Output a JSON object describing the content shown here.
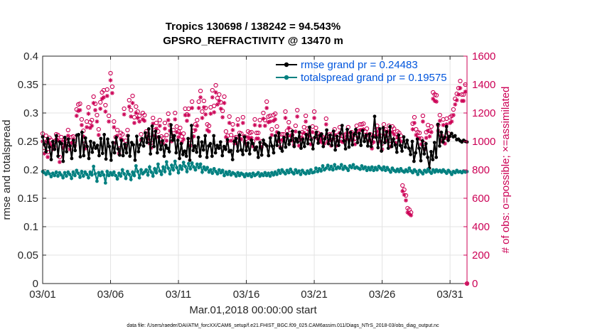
{
  "chart_data": {
    "type": "line",
    "title_line1": "Tropics 130698 / 138242 = 94.543%",
    "title_line2": "GPSRO_REFRACTIVITY @ 13470 m",
    "xlabel": "Mar.01,2018 00:00:00 start",
    "ylabel_left": "rmse and totalspread",
    "ylabel_right": "# of obs: o=possible; ×=assimilated",
    "x_tick_labels": [
      "03/01",
      "03/06",
      "03/11",
      "03/16",
      "03/21",
      "03/26",
      "03/31"
    ],
    "x_tick_days": [
      0,
      5,
      10,
      15,
      20,
      25,
      30
    ],
    "xlim_days": [
      0,
      31.25
    ],
    "ylim_left": [
      0,
      0.4
    ],
    "left_tick_labels": [
      "0",
      "0.05",
      "0.1",
      "0.15",
      "0.2",
      "0.25",
      "0.3",
      "0.35",
      "0.4"
    ],
    "ylim_right": [
      0,
      1600
    ],
    "right_tick_labels": [
      "0",
      "200",
      "400",
      "600",
      "800",
      "1000",
      "1200",
      "1400",
      "1600"
    ],
    "grid": true,
    "legend_placement": "top-right",
    "series": [
      {
        "name": "rmse grand pr = 0.24483",
        "color": "#000000",
        "axis": "left",
        "marker": "dot",
        "values": [
          0.258,
          0.245,
          0.232,
          0.255,
          0.24,
          0.218,
          0.25,
          0.236,
          0.26,
          0.224,
          0.249,
          0.246,
          0.215,
          0.257,
          0.232,
          0.254,
          0.242,
          0.22,
          0.252,
          0.234,
          0.261,
          0.262,
          0.223,
          0.266,
          0.225,
          0.256,
          0.241,
          0.22,
          0.25,
          0.231,
          0.247,
          0.238,
          0.243,
          0.225,
          0.255,
          0.229,
          0.262,
          0.219,
          0.254,
          0.241,
          0.217,
          0.248,
          0.23,
          0.257,
          0.237,
          0.226,
          0.252,
          0.225,
          0.245,
          0.23,
          0.26,
          0.224,
          0.248,
          0.244,
          0.217,
          0.259,
          0.232,
          0.244,
          0.255,
          0.242,
          0.265,
          0.248,
          0.272,
          0.228,
          0.277,
          0.241,
          0.268,
          0.23,
          0.258,
          0.236,
          0.251,
          0.224,
          0.243,
          0.238,
          0.232,
          0.279,
          0.252,
          0.26,
          0.23,
          0.252,
          0.22,
          0.246,
          0.227,
          0.233,
          0.224,
          0.255,
          0.217,
          0.278,
          0.234,
          0.242,
          0.231,
          0.257,
          0.224,
          0.249,
          0.235,
          0.26,
          0.222,
          0.242,
          0.246,
          0.224,
          0.26,
          0.23,
          0.243,
          0.238,
          0.249,
          0.225,
          0.241,
          0.236,
          0.253,
          0.232,
          0.234,
          0.218,
          0.25,
          0.255,
          0.233,
          0.261,
          0.235,
          0.227,
          0.258,
          0.234,
          0.247,
          0.228,
          0.252,
          0.246,
          0.235,
          0.24,
          0.222,
          0.248,
          0.226,
          0.252,
          0.245,
          0.242,
          0.225,
          0.256,
          0.242,
          0.23,
          0.26,
          0.243,
          0.265,
          0.238,
          0.233,
          0.257,
          0.24,
          0.263,
          0.245,
          0.252,
          0.268,
          0.241,
          0.255,
          0.249,
          0.266,
          0.238,
          0.254,
          0.241,
          0.262,
          0.246,
          0.275,
          0.253,
          0.237,
          0.257,
          0.266,
          0.247,
          0.26,
          0.263,
          0.241,
          0.255,
          0.27,
          0.246,
          0.261,
          0.243,
          0.268,
          0.235,
          0.259,
          0.243,
          0.264,
          0.278,
          0.251,
          0.237,
          0.271,
          0.24,
          0.266,
          0.244,
          0.262,
          0.271,
          0.248,
          0.264,
          0.243,
          0.269,
          0.25,
          0.261,
          0.242,
          0.263,
          0.241,
          0.258,
          0.294,
          0.257,
          0.239,
          0.272,
          0.233,
          0.274,
          0.248,
          0.267,
          0.238,
          0.276,
          0.241,
          0.254,
          0.244,
          0.231,
          0.261,
          0.243,
          0.233,
          0.258,
          0.24,
          0.252,
          0.238,
          0.227,
          0.25,
          0.215,
          0.23,
          0.254,
          0.238,
          0.216,
          0.251,
          0.228,
          0.246,
          0.222,
          0.203,
          0.232,
          0.218,
          0.248,
          0.222,
          0.28,
          0.242,
          0.266,
          0.249,
          0.257,
          0.276,
          0.252,
          0.259,
          0.264,
          0.258,
          0.26,
          0.253,
          0.254,
          0.251,
          0.249,
          0.252,
          0.25,
          0.249
        ]
      },
      {
        "name": "totalspread grand pr = 0.19575",
        "color": "#008080",
        "axis": "left",
        "marker": "dot",
        "values": [
          0.197,
          0.195,
          0.192,
          0.197,
          0.193,
          0.188,
          0.194,
          0.19,
          0.196,
          0.189,
          0.195,
          0.191,
          0.186,
          0.195,
          0.189,
          0.196,
          0.192,
          0.185,
          0.196,
          0.19,
          0.199,
          0.194,
          0.187,
          0.197,
          0.189,
          0.196,
          0.192,
          0.186,
          0.196,
          0.191,
          0.206,
          0.193,
          0.18,
          0.195,
          0.19,
          0.196,
          0.191,
          0.177,
          0.197,
          0.19,
          0.195,
          0.191,
          0.196,
          0.19,
          0.184,
          0.194,
          0.189,
          0.2,
          0.193,
          0.185,
          0.197,
          0.192,
          0.183,
          0.196,
          0.19,
          0.207,
          0.197,
          0.186,
          0.2,
          0.193,
          0.196,
          0.2,
          0.191,
          0.205,
          0.196,
          0.189,
          0.202,
          0.195,
          0.21,
          0.198,
          0.192,
          0.205,
          0.197,
          0.214,
          0.203,
          0.193,
          0.208,
          0.2,
          0.215,
          0.204,
          0.195,
          0.207,
          0.201,
          0.213,
          0.206,
          0.197,
          0.211,
          0.202,
          0.212,
          0.205,
          0.2,
          0.21,
          0.204,
          0.21,
          0.196,
          0.205,
          0.2,
          0.204,
          0.196,
          0.2,
          0.194,
          0.202,
          0.197,
          0.193,
          0.2,
          0.195,
          0.199,
          0.19,
          0.196,
          0.192,
          0.197,
          0.191,
          0.195,
          0.193,
          0.189,
          0.195,
          0.19,
          0.194,
          0.192,
          0.188,
          0.193,
          0.19,
          0.193,
          0.188,
          0.194,
          0.19,
          0.192,
          0.195,
          0.189,
          0.193,
          0.19,
          0.195,
          0.19,
          0.194,
          0.189,
          0.195,
          0.191,
          0.196,
          0.192,
          0.199,
          0.194,
          0.2,
          0.196,
          0.193,
          0.199,
          0.195,
          0.201,
          0.196,
          0.193,
          0.2,
          0.195,
          0.198,
          0.192,
          0.199,
          0.195,
          0.193,
          0.198,
          0.194,
          0.2,
          0.195,
          0.196,
          0.203,
          0.197,
          0.202,
          0.198,
          0.207,
          0.2,
          0.203,
          0.208,
          0.201,
          0.206,
          0.2,
          0.209,
          0.202,
          0.205,
          0.203,
          0.209,
          0.201,
          0.206,
          0.203,
          0.199,
          0.207,
          0.204,
          0.209,
          0.203,
          0.205,
          0.203,
          0.201,
          0.207,
          0.202,
          0.205,
          0.199,
          0.204,
          0.2,
          0.205,
          0.199,
          0.204,
          0.2,
          0.206,
          0.203,
          0.2,
          0.205,
          0.199,
          0.204,
          0.2,
          0.196,
          0.203,
          0.199,
          0.197,
          0.201,
          0.197,
          0.202,
          0.198,
          0.196,
          0.2,
          0.197,
          0.203,
          0.198,
          0.195,
          0.2,
          0.197,
          0.192,
          0.199,
          0.196,
          0.193,
          0.199,
          0.196,
          0.201,
          0.197,
          0.194,
          0.2,
          0.196,
          0.2,
          0.197,
          0.199,
          0.196,
          0.2,
          0.197,
          0.194,
          0.199,
          0.196,
          0.192,
          0.197,
          0.195,
          0.199,
          0.196,
          0.197,
          0.195,
          0.198,
          0.196,
          0.197
        ]
      },
      {
        "name": "# of obs possible",
        "color": "#cc0055",
        "axis": "right",
        "marker": "circle",
        "values": [
          1055,
          955,
          1040,
          925,
          1025,
          1010,
          980,
          1000,
          1050,
          1045,
          890,
          1030,
          995,
          1010,
          1005,
          1080,
          980,
          1030,
          1035,
          1005,
          1225,
          1260,
          1265,
          1155,
          1075,
          985,
          1140,
          1240,
          1135,
          1150,
          1315,
          1265,
          1185,
          1085,
          1275,
          1345,
          1360,
          1255,
          1365,
          1180,
          1480,
          1385,
          1140,
          1030,
          1080,
          950,
          1060,
          1050,
          1230,
          1005,
          1080,
          1290,
          1220,
          1320,
          1170,
          1245,
          1210,
          1180,
          1050,
          1200,
          1185,
          1070,
          1055,
          1025,
          990,
          1165,
          1080,
          1130,
          1070,
          1150,
          1035,
          1025,
          1130,
          1045,
          1195,
          1115,
          1040,
          1080,
          1200,
          1105,
          1070,
          1095,
          1035,
          1055,
          1230,
          1190,
          1230,
          1010,
          1280,
          1075,
          1120,
          1150,
          1280,
          1355,
          1210,
          1285,
          1235,
          1120,
          1110,
          1240,
          1360,
          1250,
          1395,
          1305,
          1330,
          1275,
          1215,
          1315,
          1070,
          1040,
          1175,
          1045,
          1120,
          1025,
          1030,
          1155,
          1060,
          1055,
          1170,
          1035,
          1020,
          1070,
          1060,
          1065,
          1000,
          1155,
          1060,
          1060,
          1150,
          1000,
          1200,
          1150,
          1280,
          1175,
          1180,
          1085,
          1185,
          1195,
          1105,
          1045,
          1000,
          1050,
          1050,
          1210,
          1075,
          1135,
          1080,
          1045,
          1015,
          1110,
          1220,
          1010,
          1050,
          1065,
          1100,
          1180,
          1090,
          1080,
          1020,
          1105,
          1210,
          1095,
          1060,
          1035,
          1050,
          1030,
          1025,
          1160,
          1040,
          1050,
          1010,
          1055,
          1085,
          1010,
          1045,
          1100,
          1040,
          1035,
          1045,
          1055,
          1100,
          1050,
          1065,
          1050,
          1020,
          1110,
          1070,
          1120,
          1120,
          1125,
          1070,
          1090,
          1045,
          1050,
          990,
          1035,
          1080,
          1110,
          1085,
          1040,
          985,
          1120,
          1085,
          1045,
          1110,
          1005,
          1105,
          1090,
          1030,
          1070,
          1060,
          1040,
          690,
          660,
          620,
          530,
          520,
          500,
          1125,
          1170,
          1085,
          1065,
          1060,
          1020,
          1180,
          985,
          1065,
          1115,
          1075,
          1105,
          1345,
          1330,
          1325,
          1115,
          1185,
          1040,
          1155,
          1025,
          1160,
          1055,
          1170,
          1180,
          1225,
          1300,
          1335,
          1375,
          1425,
          1330,
          1330,
          1400,
          0
        ]
      },
      {
        "name": "# of obs assimilated",
        "color": "#cc0055",
        "axis": "right",
        "marker": "asterisk",
        "values": [
          1000,
          915,
          1000,
          890,
          985,
          970,
          945,
          960,
          1015,
          1010,
          855,
          995,
          955,
          975,
          970,
          1040,
          945,
          990,
          995,
          970,
          1180,
          1215,
          1220,
          1115,
          1035,
          950,
          1100,
          1195,
          1095,
          1110,
          1270,
          1220,
          1140,
          1045,
          1230,
          1300,
          1310,
          1210,
          1320,
          1140,
          1430,
          1340,
          1100,
          990,
          1040,
          915,
          1020,
          1010,
          1190,
          965,
          1040,
          1245,
          1175,
          1270,
          1130,
          1200,
          1165,
          1140,
          1010,
          1155,
          1145,
          1030,
          1015,
          985,
          955,
          1125,
          1040,
          1090,
          1030,
          1110,
          995,
          985,
          1090,
          1005,
          1150,
          1075,
          1000,
          1040,
          1155,
          1065,
          1030,
          1055,
          995,
          1015,
          1185,
          1145,
          1185,
          970,
          1235,
          1035,
          1080,
          1110,
          1235,
          1310,
          1165,
          1240,
          1190,
          1080,
          1070,
          1195,
          1310,
          1205,
          1345,
          1260,
          1285,
          1230,
          1170,
          1270,
          1030,
          1000,
          1130,
          1005,
          1080,
          985,
          990,
          1115,
          1020,
          1015,
          1130,
          995,
          980,
          1030,
          1020,
          1025,
          965,
          1115,
          1020,
          1020,
          1110,
          960,
          1160,
          1110,
          1235,
          1135,
          1140,
          1045,
          1145,
          1155,
          1065,
          1005,
          960,
          1010,
          1010,
          1165,
          1035,
          1095,
          1040,
          1005,
          975,
          1070,
          1175,
          970,
          1010,
          1025,
          1060,
          1140,
          1050,
          1040,
          980,
          1065,
          1165,
          1055,
          1020,
          995,
          1010,
          990,
          985,
          1120,
          1000,
          1010,
          970,
          1015,
          1045,
          970,
          1005,
          1060,
          1000,
          995,
          1005,
          1015,
          1060,
          1010,
          1025,
          1010,
          980,
          1070,
          1030,
          1080,
          1080,
          1085,
          1030,
          1050,
          1005,
          1010,
          950,
          995,
          1040,
          1070,
          1045,
          1000,
          945,
          1080,
          1045,
          1005,
          1070,
          965,
          1065,
          1050,
          990,
          1030,
          1020,
          1000,
          650,
          625,
          585,
          500,
          490,
          480,
          1085,
          1130,
          1045,
          1025,
          1020,
          980,
          1140,
          945,
          1025,
          1075,
          1035,
          1065,
          1300,
          1285,
          1280,
          1075,
          1145,
          1000,
          1115,
          985,
          1120,
          1015,
          1130,
          1140,
          1185,
          1260,
          1290,
          1330,
          1375,
          1285,
          1285,
          1350,
          0
        ]
      }
    ],
    "footnote": "data file: /Users/raeder/DAI/ATM_forcXX/CAM6_setup/f.e21.FHIST_BGC.f09_025.CAM6assim.011/Diags_NTrS_2018-03/obs_diag_output.nc"
  }
}
